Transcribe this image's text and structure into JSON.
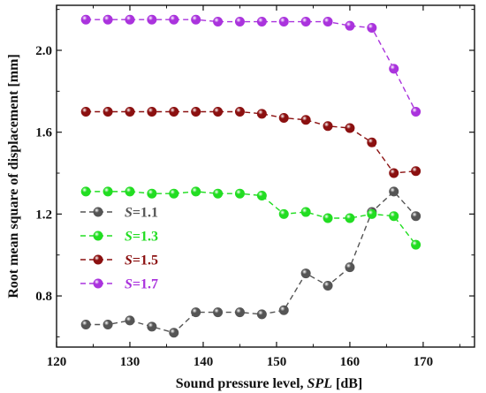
{
  "chart_data": {
    "type": "line",
    "title": "",
    "xlabel": "Sound pressure level, SPL [dB]",
    "xlabel_parts": [
      "Sound pressure level, ",
      "SPL",
      " [dB]"
    ],
    "ylabel": "Root mean square of displacement [mm]",
    "xlim": [
      120,
      177
    ],
    "ylim": [
      0.55,
      2.22
    ],
    "xticks": [
      120,
      130,
      140,
      150,
      160,
      170
    ],
    "xtick_labels": [
      "120",
      "130",
      "140",
      "150",
      "160",
      "170"
    ],
    "yticks": [
      0.8,
      1.2,
      1.6,
      2.0
    ],
    "ytick_labels": [
      "0.8",
      "1.2",
      "1.6",
      "2.0"
    ],
    "grid": false,
    "legend_position": "center-left",
    "x": [
      124,
      127,
      130,
      133,
      136,
      139,
      142,
      145,
      148,
      151,
      154,
      157,
      160,
      163,
      166,
      169
    ],
    "series": [
      {
        "name": "S=1.1",
        "name_var": "S",
        "name_value": "=1.1",
        "color": "#555555",
        "values": [
          0.66,
          0.66,
          0.68,
          0.65,
          0.62,
          0.72,
          0.72,
          0.72,
          0.71,
          0.73,
          0.91,
          0.85,
          0.94,
          1.21,
          1.31,
          1.19
        ]
      },
      {
        "name": "S=1.3",
        "name_var": "S",
        "name_value": "=1.3",
        "color": "#22dd22",
        "values": [
          1.31,
          1.31,
          1.31,
          1.3,
          1.3,
          1.31,
          1.3,
          1.3,
          1.29,
          1.2,
          1.21,
          1.18,
          1.18,
          1.2,
          1.19,
          1.05
        ]
      },
      {
        "name": "S=1.5",
        "name_var": "S",
        "name_value": "=1.5",
        "color": "#8b1010",
        "values": [
          1.7,
          1.7,
          1.7,
          1.7,
          1.7,
          1.7,
          1.7,
          1.7,
          1.69,
          1.67,
          1.66,
          1.63,
          1.62,
          1.55,
          1.4,
          1.41
        ]
      },
      {
        "name": "S=1.7",
        "name_var": "S",
        "name_value": "=1.7",
        "color": "#aa33dd",
        "values": [
          2.15,
          2.15,
          2.15,
          2.15,
          2.15,
          2.15,
          2.14,
          2.14,
          2.14,
          2.14,
          2.14,
          2.14,
          2.12,
          2.11,
          1.91,
          1.7
        ]
      }
    ]
  }
}
